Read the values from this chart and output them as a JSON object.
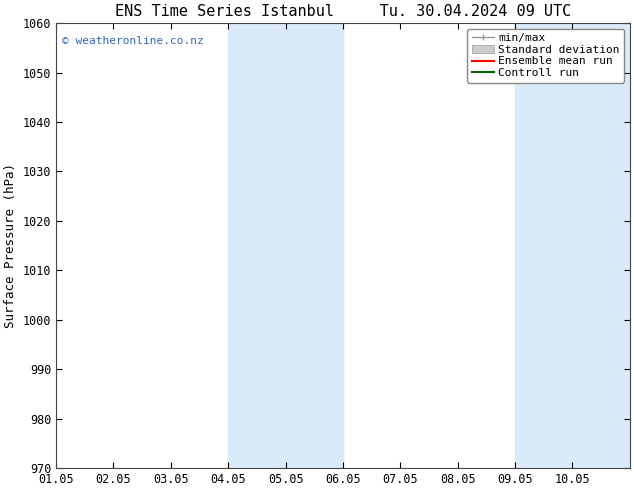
{
  "title_left": "ENS Time Series Istanbul",
  "title_right": "Tu. 30.04.2024 09 UTC",
  "ylabel": "Surface Pressure (hPa)",
  "xlim": [
    0,
    10
  ],
  "ylim": [
    970,
    1060
  ],
  "yticks": [
    970,
    980,
    990,
    1000,
    1010,
    1020,
    1030,
    1040,
    1050,
    1060
  ],
  "xtick_labels": [
    "01.05",
    "02.05",
    "03.05",
    "04.05",
    "05.05",
    "06.05",
    "07.05",
    "08.05",
    "09.05",
    "10.05"
  ],
  "background_color": "#ffffff",
  "plot_bg_color": "#ffffff",
  "shaded_regions": [
    {
      "xmin": 3.0,
      "xmax": 5.0,
      "color": "#daeaf8"
    },
    {
      "xmin": 8.0,
      "xmax": 10.0,
      "color": "#daeaf8"
    }
  ],
  "watermark_text": "© weatheronline.co.nz",
  "watermark_color": "#3366bb",
  "legend_labels": [
    "min/max",
    "Standard deviation",
    "Ensemble mean run",
    "Controll run"
  ],
  "legend_colors": [
    "#999999",
    "#cccccc",
    "#ff0000",
    "#006600"
  ],
  "title_fontsize": 11,
  "axis_fontsize": 9,
  "tick_fontsize": 8.5,
  "legend_fontsize": 8
}
